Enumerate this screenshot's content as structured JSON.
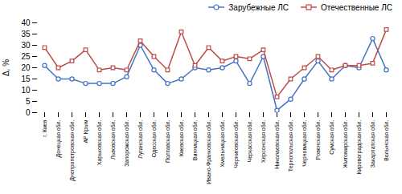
{
  "chart_data": {
    "type": "line",
    "categories": [
      "г. Киев",
      "Донецкая обл.",
      "Днепропетровская обл.",
      "АР Крым",
      "Харьковская обл.",
      "Львовская обл.",
      "Запорожская обл.",
      "Луганская обл.",
      "Одесская обл.",
      "Полтавская обл.",
      "Киевская обл.",
      "Винницкая обл.",
      "Ивано-Франковская обл.",
      "Хмельницкая обл.",
      "Черниговская обл.",
      "Черкасская обл.",
      "Херсонская обл.",
      "Николаевская обл.",
      "Тернопольская обл.",
      "Черновицкая обл.",
      "Ровенская обл.",
      "Сумская обл.",
      "Житомирская обл.",
      "Кировоградская обл.",
      "Закарпатская обл.",
      "Волынская обл."
    ],
    "series": [
      {
        "name": "Зарубежные ЛС",
        "color": "#4472C4",
        "marker": "circle",
        "values": [
          21,
          15,
          15,
          13,
          13,
          13,
          16,
          30,
          19,
          13,
          15,
          20,
          19,
          20,
          23,
          13,
          25,
          1,
          6,
          15,
          23,
          15,
          21,
          20,
          33,
          19
        ]
      },
      {
        "name": "Отечественные ЛС",
        "color": "#BE4B48",
        "marker": "square",
        "values": [
          29,
          20,
          23,
          28,
          19,
          20,
          19,
          32,
          25,
          19,
          36,
          21,
          29,
          23,
          25,
          24,
          28,
          7,
          15,
          20,
          25,
          19,
          21,
          21,
          22,
          37
        ]
      }
    ],
    "ylabel": "Δ, %",
    "ylim": [
      0,
      40
    ],
    "yticks": [
      0,
      5,
      10,
      15,
      20,
      25,
      30,
      35,
      40
    ],
    "grid": false,
    "legend": "upper right"
  }
}
